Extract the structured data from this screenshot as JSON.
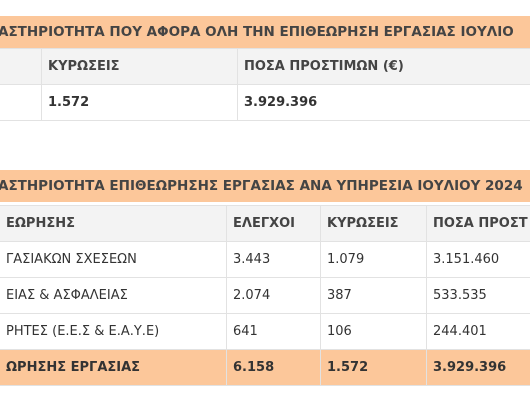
{
  "table1": {
    "title": "ΑΣΤΗΡΙΟΤΗΤΑ ΠΟΥ ΑΦΟΡΑ ΟΛΗ ΤΗΝ ΕΠΙΘΕΩΡΗΣΗ ΕΡΓΑΣΙΑΣ ΙΟΥΛΙΟ",
    "headers": [
      "",
      "ΚΥΡΩΣΕΙΣ",
      "ΠΟΣΑ ΠΡΟΣΤΙΜΩΝ (€)"
    ],
    "row": [
      "",
      "1.572",
      "3.929.396"
    ]
  },
  "table2": {
    "title": "ΑΣΤΗΡΙΟΤΗΤΑ ΕΠΙΘΕΩΡΗΣΗΣ ΕΡΓΑΣΙΑΣ ΑΝΑ ΥΠΗΡΕΣΙΑ ΙΟΥΛΙΟΥ 2024",
    "headers": [
      "ΕΩΡΗΣΗΣ",
      "ΕΛΕΓΧΟΙ",
      "ΚΥΡΩΣΕΙΣ",
      "ΠΟΣΑ ΠΡΟΣΤ"
    ],
    "rows": [
      [
        "ΓΑΣΙΑΚΩΝ ΣΧΕΣΕΩΝ",
        "3.443",
        "1.079",
        "3.151.460"
      ],
      [
        "ΕΙΑΣ & ΑΣΦΑΛΕΙΑΣ",
        "2.074",
        "387",
        "533.535"
      ],
      [
        "ΡΗΤΕΣ (Ε.Ε.Σ & Ε.Α.Υ.Ε)",
        "641",
        "106",
        "244.401"
      ]
    ],
    "total": [
      "ΩΡΗΣΗΣ ΕΡΓΑΣΙΑΣ",
      "6.158",
      "1.572",
      "3.929.396"
    ]
  }
}
